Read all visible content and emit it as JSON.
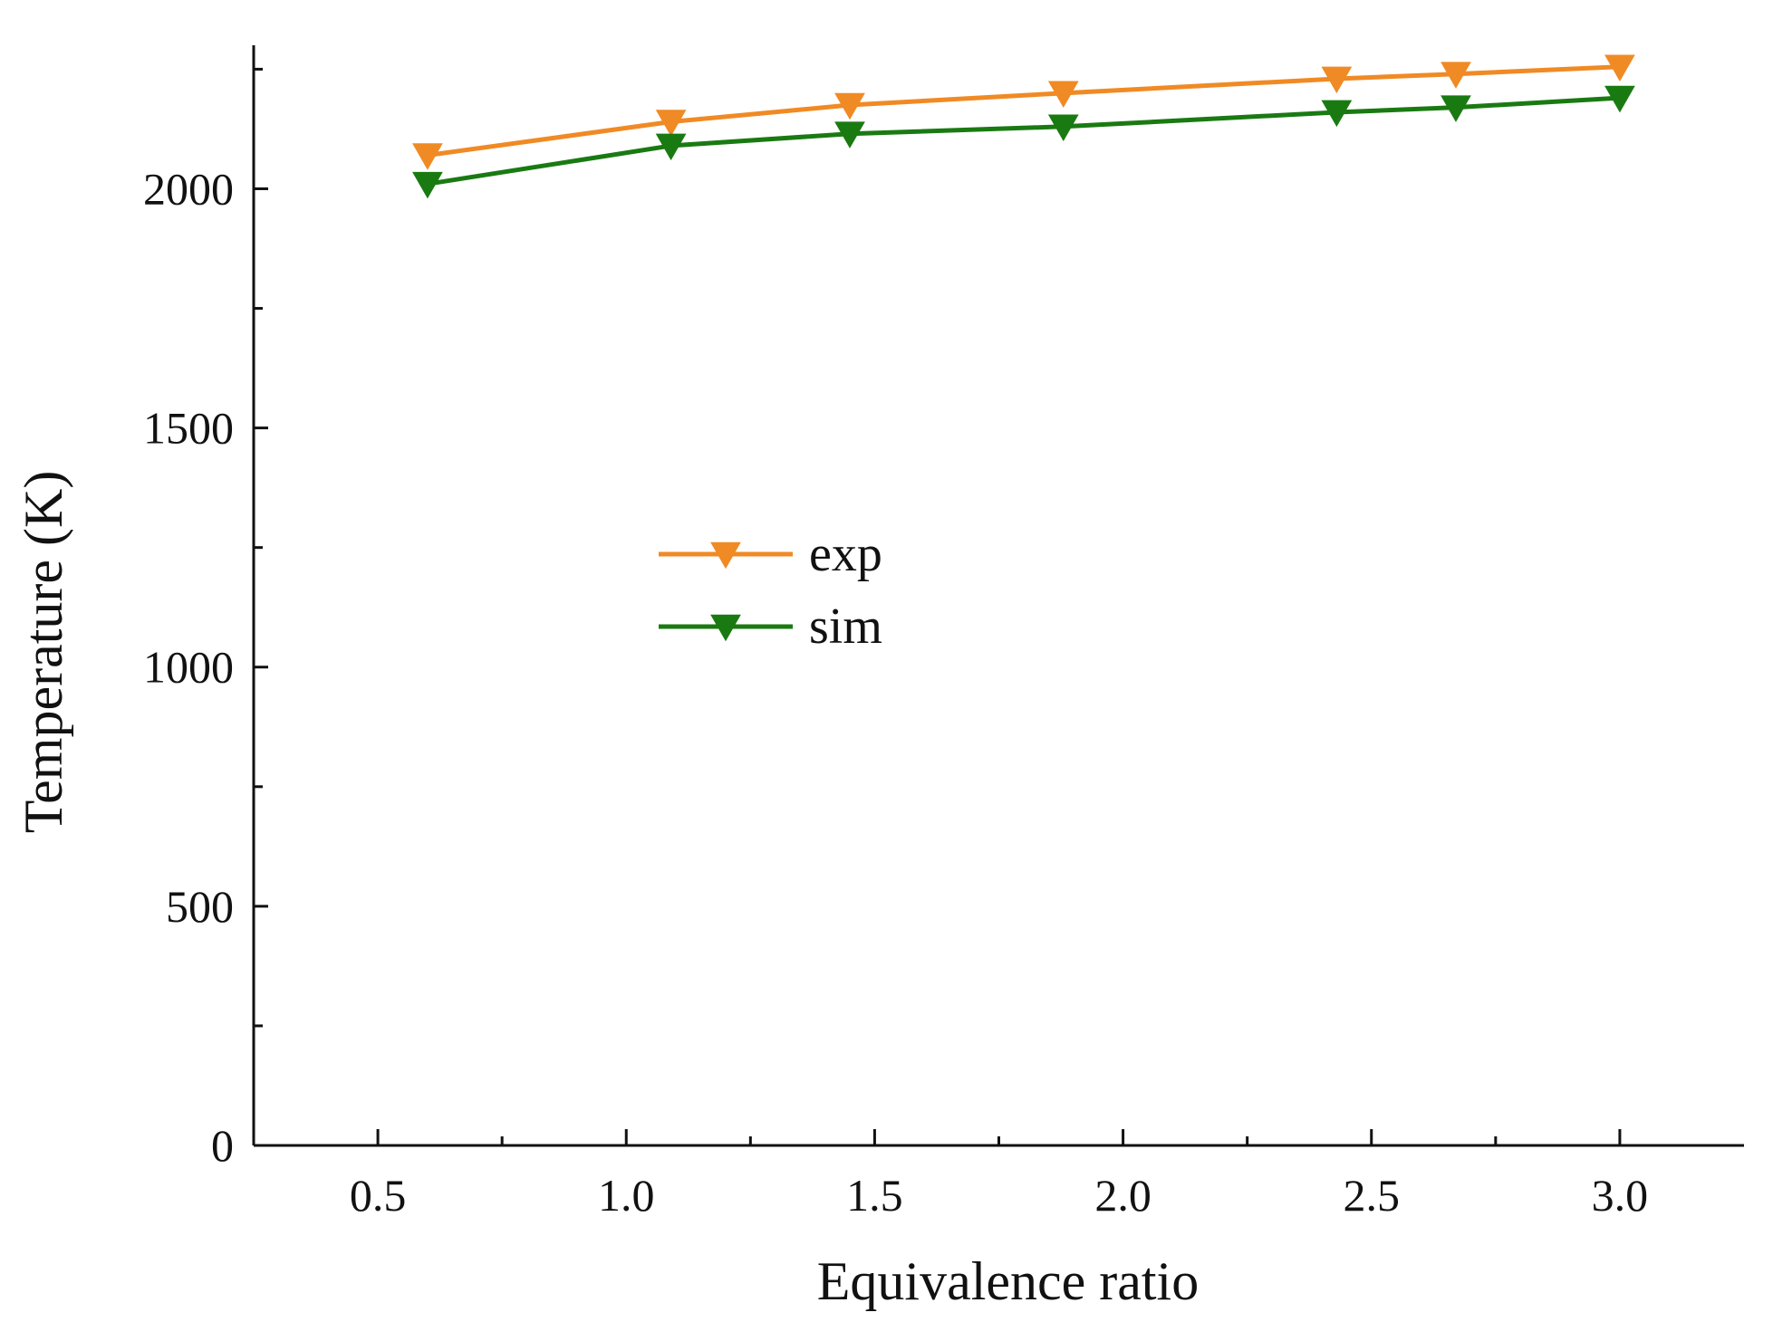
{
  "chart_data": {
    "type": "line",
    "title": "",
    "xlabel": "Equivalence ratio",
    "ylabel": "Temperature (K)",
    "xlim": [
      0.25,
      3.25
    ],
    "ylim": [
      0,
      2300
    ],
    "x_ticks": [
      0.5,
      1.0,
      1.5,
      2.0,
      2.5,
      3.0
    ],
    "x_tick_labels": [
      "0.5",
      "1.0",
      "1.5",
      "2.0",
      "2.5",
      "3.0"
    ],
    "x_minor_ticks": [
      0.75,
      1.25,
      1.75,
      2.25,
      2.75
    ],
    "y_ticks": [
      0,
      500,
      1000,
      1500,
      2000
    ],
    "y_tick_labels": [
      "0",
      "500",
      "1000",
      "1500",
      "2000"
    ],
    "y_minor_ticks": [
      250,
      750,
      1250,
      1750,
      2250
    ],
    "grid": false,
    "legend_position": "center-left",
    "x": [
      0.6,
      1.09,
      1.45,
      1.88,
      2.43,
      2.67,
      3.0
    ],
    "series": [
      {
        "name": "exp",
        "color": "#f08a24",
        "marker": "triangle-down",
        "values": [
          2070,
          2140,
          2175,
          2200,
          2230,
          2240,
          2255
        ]
      },
      {
        "name": "sim",
        "color": "#1a7a12",
        "marker": "triangle-down",
        "values": [
          2010,
          2090,
          2115,
          2130,
          2160,
          2170,
          2190
        ]
      }
    ]
  }
}
